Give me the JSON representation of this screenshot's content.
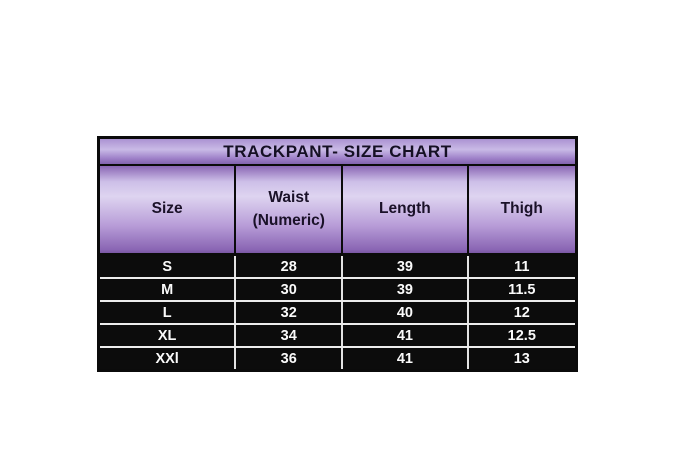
{
  "page": {
    "background_color": "#ffffff"
  },
  "chart_data": {
    "type": "table",
    "title": "TRACKPANT- SIZE CHART",
    "columns": [
      "Size",
      "Waist (Numeric)",
      "Length",
      "Thigh"
    ],
    "rows": [
      [
        "S",
        "28",
        "39",
        "11"
      ],
      [
        "M",
        "30",
        "39",
        "11.5"
      ],
      [
        "L",
        "32",
        "40",
        "12"
      ],
      [
        "XL",
        "34",
        "41",
        "12.5"
      ],
      [
        "XXl",
        "36",
        "41",
        "13"
      ]
    ]
  },
  "style": {
    "title_bar_gradient": [
      "#ab92d2",
      "#c9bae6",
      "#8263ae"
    ],
    "header_cell_gradient": [
      "#8a66b4",
      "#ded4f0",
      "#7a58a4"
    ],
    "title_text_color": "#151024",
    "header_text_color": "#1a1128",
    "data_row_background": "#0c0c0c",
    "data_text_color": "#fafafa",
    "outer_border_color": "#0b0b0b",
    "data_grid_line_color": "#ededed"
  }
}
